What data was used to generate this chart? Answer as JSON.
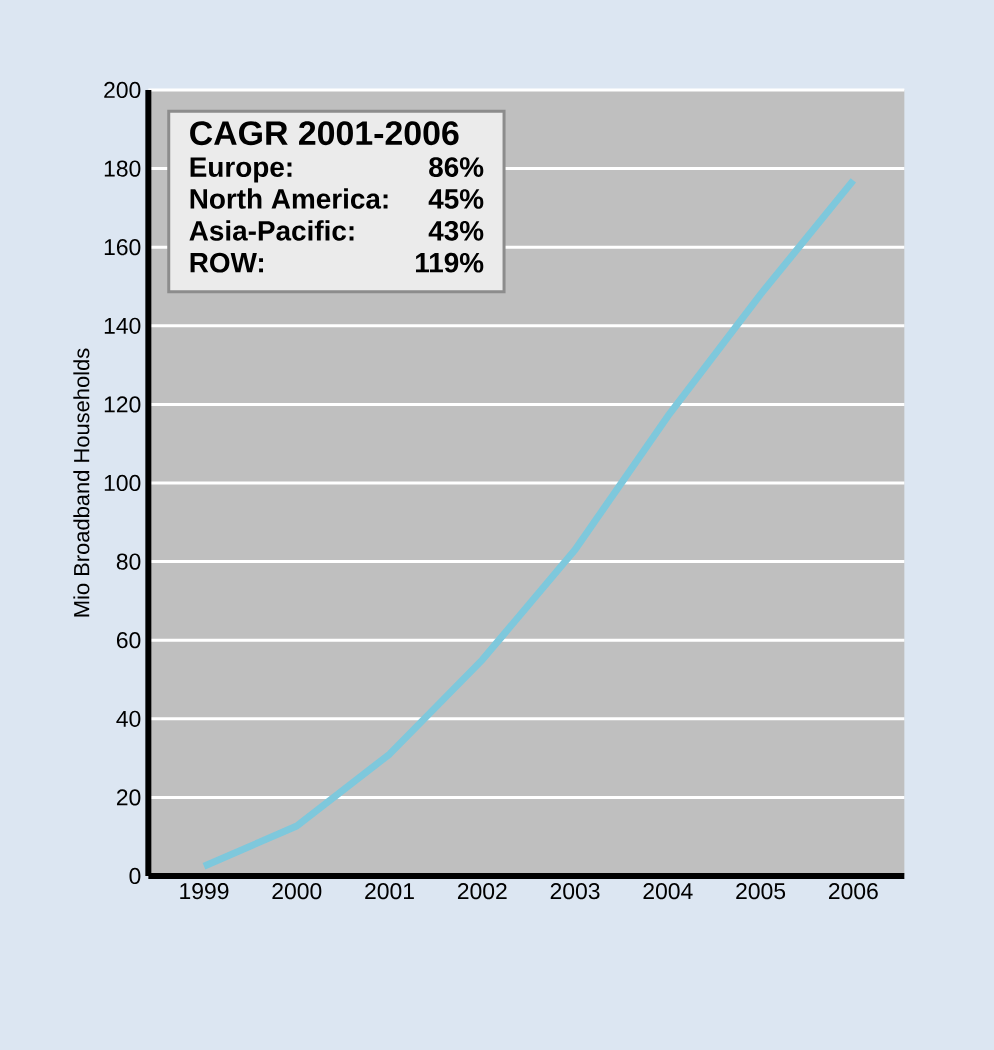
{
  "chart_data": {
    "type": "line",
    "ylabel": "Mio Broadband Households",
    "categories": [
      "1999",
      "2000",
      "2001",
      "2002",
      "2003",
      "2004",
      "2005",
      "2006"
    ],
    "series": [
      {
        "color": "#7ec8dc",
        "values": [
          2.5,
          12.7,
          31,
          55,
          83,
          117,
          148,
          177
        ]
      }
    ],
    "ylim": [
      0,
      200
    ],
    "yticks": [
      0,
      20,
      40,
      60,
      80,
      100,
      120,
      140,
      160,
      180,
      200
    ],
    "grid": "y",
    "annotations": [
      "CAGR 2001-2006",
      "Europe:",
      "86%",
      "North America:",
      "45%",
      "Asia-Pacific:",
      "43%",
      "ROW:",
      "119%"
    ]
  }
}
